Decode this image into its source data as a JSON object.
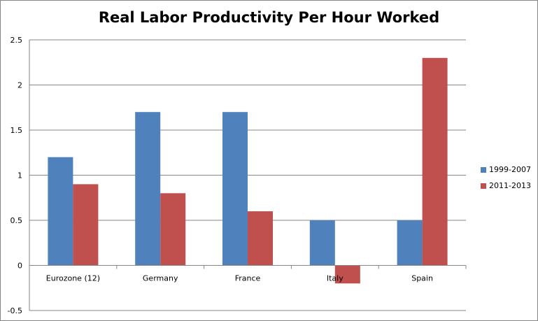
{
  "chart_data": {
    "type": "bar",
    "title": "Real Labor Productivity Per Hour Worked",
    "xlabel": "",
    "ylabel": "",
    "categories": [
      "Eurozone (12)",
      "Germany",
      "France",
      "Italy",
      "Spain"
    ],
    "series": [
      {
        "name": "1999-2007",
        "color": "#4f81bd",
        "values": [
          1.2,
          1.7,
          1.7,
          0.5,
          0.5
        ]
      },
      {
        "name": "2011-2013",
        "color": "#c0504d",
        "values": [
          0.9,
          0.8,
          0.6,
          -0.2,
          2.3
        ]
      }
    ],
    "ylim": [
      -0.5,
      2.5
    ],
    "yticks": [
      "-0.5",
      "0",
      "0.5",
      "1",
      "1.5",
      "2",
      "2.5"
    ],
    "grid": true,
    "legend_position": "right"
  }
}
